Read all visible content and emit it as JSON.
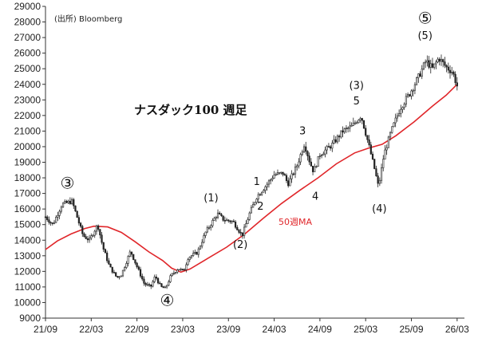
{
  "chart_data": {
    "type": "candlestick",
    "title": "ナスダック100 週足",
    "source": "(出所) Bloomberg",
    "ma_label": "50週MA",
    "colors": {
      "price": "#222222",
      "ma": "#e0262a",
      "axis": "#333333"
    },
    "ylim": [
      9000,
      29000
    ],
    "yticks": [
      "9000",
      "10000",
      "11000",
      "12000",
      "13000",
      "14000",
      "15000",
      "16000",
      "17000",
      "18000",
      "19000",
      "20000",
      "21000",
      "22000",
      "23000",
      "24000",
      "25000",
      "26000",
      "27000",
      "28000",
      "29000"
    ],
    "xlim": [
      2021.67,
      2026.25
    ],
    "xtick_labels": [
      "21/09",
      "22/03",
      "22/09",
      "23/03",
      "23/09",
      "24/03",
      "24/09",
      "25/03",
      "25/09",
      "26/03"
    ],
    "xtick_values": [
      2021.67,
      2022.17,
      2022.67,
      2023.17,
      2023.67,
      2024.17,
      2024.67,
      2025.17,
      2025.67,
      2026.17
    ],
    "price_keypoints": [
      [
        2021.67,
        15500
      ],
      [
        2021.75,
        15000
      ],
      [
        2021.85,
        16300
      ],
      [
        2021.96,
        16500
      ],
      [
        2022.02,
        15400
      ],
      [
        2022.08,
        14300
      ],
      [
        2022.15,
        14000
      ],
      [
        2022.24,
        15000
      ],
      [
        2022.3,
        13500
      ],
      [
        2022.37,
        12300
      ],
      [
        2022.45,
        11600
      ],
      [
        2022.5,
        11800
      ],
      [
        2022.6,
        13300
      ],
      [
        2022.67,
        12300
      ],
      [
        2022.75,
        11200
      ],
      [
        2022.82,
        11000
      ],
      [
        2022.87,
        11700
      ],
      [
        2022.93,
        11000
      ],
      [
        2022.98,
        10900
      ],
      [
        2023.04,
        11700
      ],
      [
        2023.12,
        12200
      ],
      [
        2023.18,
        12000
      ],
      [
        2023.23,
        12900
      ],
      [
        2023.33,
        13200
      ],
      [
        2023.42,
        14500
      ],
      [
        2023.55,
        15700
      ],
      [
        2023.62,
        15300
      ],
      [
        2023.72,
        15200
      ],
      [
        2023.82,
        14300
      ],
      [
        2023.9,
        15700
      ],
      [
        2023.98,
        16800
      ],
      [
        2024.08,
        17500
      ],
      [
        2024.17,
        18200
      ],
      [
        2024.27,
        18300
      ],
      [
        2024.32,
        17600
      ],
      [
        2024.42,
        18800
      ],
      [
        2024.5,
        20200
      ],
      [
        2024.56,
        19000
      ],
      [
        2024.6,
        18400
      ],
      [
        2024.67,
        19500
      ],
      [
        2024.8,
        20100
      ],
      [
        2024.92,
        21000
      ],
      [
        2025.02,
        21300
      ],
      [
        2025.12,
        22000
      ],
      [
        2025.2,
        20200
      ],
      [
        2025.27,
        18500
      ],
      [
        2025.31,
        17400
      ],
      [
        2025.37,
        19500
      ],
      [
        2025.45,
        21000
      ],
      [
        2025.55,
        22500
      ],
      [
        2025.65,
        23400
      ],
      [
        2025.75,
        24500
      ],
      [
        2025.83,
        25500
      ],
      [
        2025.9,
        25000
      ],
      [
        2025.97,
        25700
      ],
      [
        2026.05,
        25100
      ],
      [
        2026.12,
        24800
      ],
      [
        2026.17,
        23900
      ]
    ],
    "ma_keypoints": [
      [
        2021.67,
        13400
      ],
      [
        2021.8,
        13950
      ],
      [
        2021.95,
        14400
      ],
      [
        2022.1,
        14750
      ],
      [
        2022.2,
        14900
      ],
      [
        2022.35,
        14850
      ],
      [
        2022.5,
        14500
      ],
      [
        2022.65,
        13900
      ],
      [
        2022.8,
        13250
      ],
      [
        2022.95,
        12700
      ],
      [
        2023.05,
        12200
      ],
      [
        2023.15,
        11950
      ],
      [
        2023.25,
        12150
      ],
      [
        2023.45,
        12850
      ],
      [
        2023.65,
        13550
      ],
      [
        2023.85,
        14400
      ],
      [
        2024.05,
        15400
      ],
      [
        2024.25,
        16350
      ],
      [
        2024.45,
        17200
      ],
      [
        2024.65,
        18000
      ],
      [
        2024.85,
        18900
      ],
      [
        2025.05,
        19600
      ],
      [
        2025.2,
        19900
      ],
      [
        2025.35,
        20150
      ],
      [
        2025.5,
        20700
      ],
      [
        2025.7,
        21600
      ],
      [
        2025.9,
        22600
      ],
      [
        2026.05,
        23300
      ],
      [
        2026.17,
        24000
      ]
    ],
    "annotations": [
      {
        "text": "③",
        "x": 2021.91,
        "y": 17300,
        "size": "big"
      },
      {
        "text": "④",
        "x": 2023.0,
        "y": 9800,
        "size": "big"
      },
      {
        "text": "⑤",
        "x": 2025.82,
        "y": 27900,
        "size": "big"
      },
      {
        "text": "(5)",
        "x": 2025.82,
        "y": 26900,
        "size": "normal"
      },
      {
        "text": "(1)",
        "x": 2023.48,
        "y": 16500,
        "size": "normal"
      },
      {
        "text": "(2)",
        "x": 2023.8,
        "y": 13500,
        "size": "normal"
      },
      {
        "text": "1",
        "x": 2023.98,
        "y": 17550,
        "size": "normal"
      },
      {
        "text": "2",
        "x": 2024.02,
        "y": 15950,
        "size": "normal"
      },
      {
        "text": "3",
        "x": 2024.48,
        "y": 20800,
        "size": "normal"
      },
      {
        "text": "4",
        "x": 2024.62,
        "y": 16600,
        "size": "normal"
      },
      {
        "text": "(3)",
        "x": 2025.07,
        "y": 23700,
        "size": "normal"
      },
      {
        "text": "5",
        "x": 2025.07,
        "y": 22700,
        "size": "normal"
      },
      {
        "text": "(4)",
        "x": 2025.32,
        "y": 15800,
        "size": "normal"
      }
    ]
  }
}
